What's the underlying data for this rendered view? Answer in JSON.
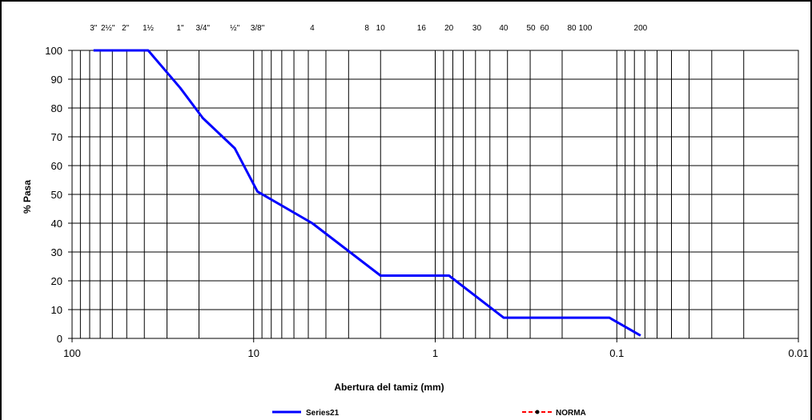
{
  "chart_data": {
    "type": "line",
    "xscale": "log",
    "xreversed": true,
    "xlim": [
      100,
      0.01
    ],
    "ylim": [
      0,
      100
    ],
    "xlabel": "Abertura del tamiz (mm)",
    "ylabel": "% Pasa",
    "yticks": [
      "0",
      "10",
      "20",
      "30",
      "40",
      "50",
      "60",
      "70",
      "80",
      "90",
      "100"
    ],
    "xticks": [
      {
        "value": 100,
        "label": "100"
      },
      {
        "value": 10,
        "label": "10"
      },
      {
        "value": 1,
        "label": "1"
      },
      {
        "value": 0.1,
        "label": "0.1"
      },
      {
        "value": 0.01,
        "label": "0.01"
      }
    ],
    "sieves": [
      {
        "label": "3\"",
        "size": 76.2
      },
      {
        "label": "2½\"",
        "size": 63.5
      },
      {
        "label": "2\"",
        "size": 50.8
      },
      {
        "label": "1½",
        "size": 38.1
      },
      {
        "label": "1\"",
        "size": 25.4
      },
      {
        "label": "3/4\"",
        "size": 19.05
      },
      {
        "label": "½\"",
        "size": 12.7
      },
      {
        "label": "3/8\"",
        "size": 9.525
      },
      {
        "label": "4",
        "size": 4.76
      },
      {
        "label": "8",
        "size": 2.38
      },
      {
        "label": "10",
        "size": 2.0
      },
      {
        "label": "16",
        "size": 1.19
      },
      {
        "label": "20",
        "size": 0.84
      },
      {
        "label": "30",
        "size": 0.59
      },
      {
        "label": "40",
        "size": 0.42
      },
      {
        "label": "50",
        "size": 0.297
      },
      {
        "label": "60",
        "size": 0.25
      },
      {
        "label": "80",
        "size": 0.177
      },
      {
        "label": "100",
        "size": 0.149
      },
      {
        "label": "200",
        "size": 0.074
      }
    ],
    "series": [
      {
        "name": "Series21",
        "color": "#0000ff",
        "x": [
          76.2,
          63.5,
          50.8,
          38.1,
          25.4,
          19.05,
          12.7,
          9.525,
          4.76,
          2.0,
          0.84,
          0.42,
          0.11,
          0.074
        ],
        "y": [
          100,
          100,
          100,
          100,
          87,
          76.5,
          66,
          51,
          40,
          21.8,
          21.8,
          7.2,
          7.2,
          1
        ]
      }
    ],
    "legend": {
      "position": "bottom",
      "entries": [
        {
          "name": "Series21",
          "color": "#0000ff",
          "style": "solid"
        },
        {
          "name": "NORMA",
          "color": "#ff0000",
          "style": "dashed-marker"
        }
      ]
    },
    "grid": true
  }
}
